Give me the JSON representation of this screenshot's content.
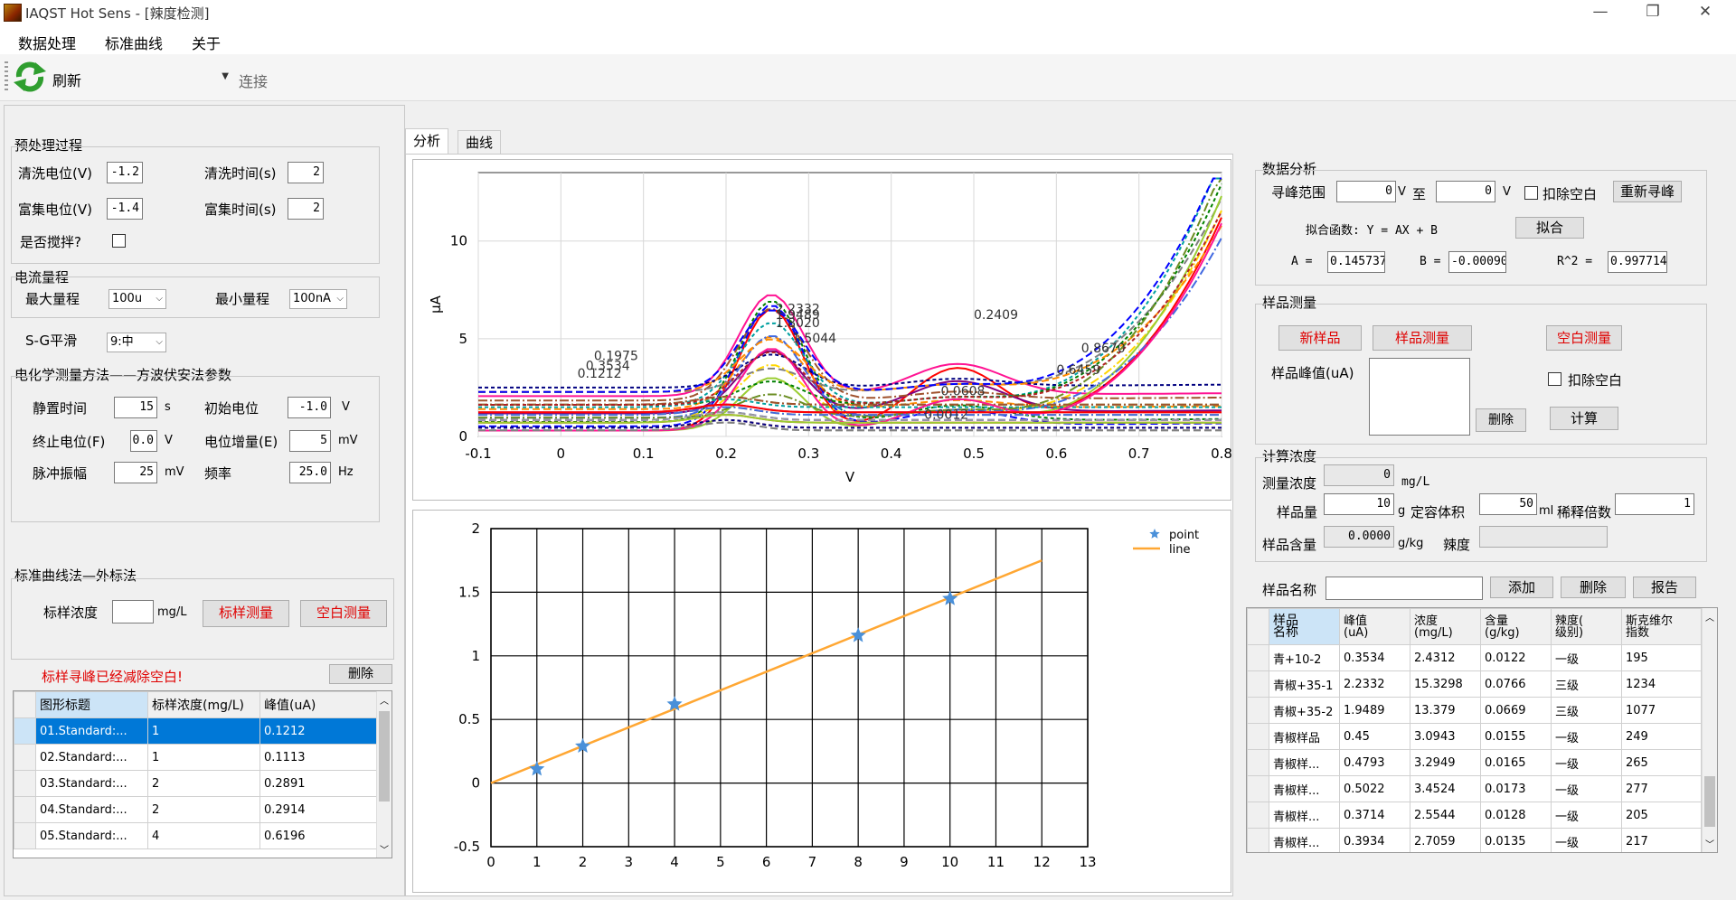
{
  "window": {
    "title": "IAQST Hot Sens - [辣度检测]",
    "min": "—",
    "max": "❐",
    "close": "✕"
  },
  "menu": [
    "数据处理",
    "标准曲线",
    "关于"
  ],
  "toolbar": {
    "refresh": "刷新",
    "port_value": "",
    "connect": "连接"
  },
  "pre": {
    "title": "预处理过程",
    "clean_pot_label": "清洗电位(V)",
    "clean_pot": "-1.2",
    "clean_time_label": "清洗时间(s)",
    "clean_time": "2",
    "enrich_pot_label": "富集电位(V)",
    "enrich_pot": "-1.4",
    "enrich_time_label": "富集时间(s)",
    "enrich_time": "2",
    "stir_label": "是否搅拌?"
  },
  "current": {
    "title": "电流量程",
    "max_label": "最大量程",
    "max_value": "100u",
    "min_label": "最小量程",
    "min_value": "100nA",
    "sg_label": "S-G平滑",
    "sg_value": "9:中"
  },
  "swv": {
    "title": "电化学测量方法——方波伏安法参数",
    "rest_label": "静置时间",
    "rest": "15",
    "rest_unit": "s",
    "init_label": "初始电位",
    "init": "-1.0",
    "init_unit": "V",
    "end_label": "终止电位(F)",
    "end": "0.0",
    "end_unit": "V",
    "inc_label": "电位增量(E)",
    "inc": "5",
    "inc_unit": "mV",
    "amp_label": "脉冲振幅",
    "amp": "25",
    "amp_unit": "mV",
    "freq_label": "频率",
    "freq": "25.0",
    "freq_unit": "Hz"
  },
  "stdcurve": {
    "title": "标准曲线法—外标法",
    "conc_label": "标样浓度",
    "conc": "",
    "conc_unit": "mg/L",
    "measure_btn": "标样测量",
    "blank_btn": "空白测量",
    "status": "标样寻峰已经减除空白!",
    "delete_btn": "删除",
    "headers": [
      "图形标题",
      "标样浓度(mg/L)",
      "峰值(uA)"
    ],
    "rows": [
      [
        "01.Standard:...",
        "1",
        "0.1212"
      ],
      [
        "02.Standard:...",
        "1",
        "0.1113"
      ],
      [
        "03.Standard:...",
        "2",
        "0.2891"
      ],
      [
        "04.Standard:...",
        "2",
        "0.2914"
      ],
      [
        "05.Standard:...",
        "4",
        "0.6196"
      ]
    ]
  },
  "tabs": [
    "分析",
    "曲线"
  ],
  "voltammogram": {
    "xlabel": "V",
    "ylabel": "µA",
    "xticks": [
      "-0.1",
      "0",
      "0.1",
      "0.2",
      "0.3",
      "0.4",
      "0.5",
      "0.6",
      "0.7",
      "0.8"
    ],
    "yticks": [
      "0",
      "5",
      "10"
    ],
    "annotations": [
      "2.2332",
      "1.9489",
      "1.8020",
      "1.5044",
      "0.3534",
      "0.2409",
      "0.1975",
      "0.1212",
      "0.8670",
      "0.6459",
      "0.0608",
      "0.0012"
    ]
  },
  "chart_data": {
    "type": "scatter",
    "title": "",
    "xlabel": "",
    "ylabel": "",
    "xlim": [
      0,
      13
    ],
    "ylim": [
      -0.5,
      2
    ],
    "xticks": [
      "0",
      "1",
      "2",
      "3",
      "4",
      "5",
      "6",
      "7",
      "8",
      "9",
      "10",
      "11",
      "12",
      "13"
    ],
    "yticks": [
      "-0.5",
      "0",
      "0.5",
      "1",
      "1.5",
      "2"
    ],
    "series": [
      {
        "name": "point",
        "x": [
          1,
          2,
          4,
          8,
          10
        ],
        "y": [
          0.11,
          0.29,
          0.62,
          1.16,
          1.45
        ],
        "color": "#4a90d9"
      },
      {
        "name": "line",
        "x": [
          0,
          12
        ],
        "y": [
          0,
          1.75
        ],
        "color": "#ffa733"
      }
    ],
    "legend": "top-right",
    "grid": true
  },
  "analysis": {
    "title": "数据分析",
    "range_label": "寻峰范围",
    "from": "0",
    "v1": "V",
    "to": "至",
    "to_val": "0",
    "v2": "V",
    "subtract": "扣除空白",
    "refind": "重新寻峰",
    "fit_label": "拟合函数: Y = AX + B",
    "fit_btn": "拟合",
    "a_label": "A =",
    "a": "0.145737",
    "b_label": "B =",
    "b": "-0.00090",
    "r_label": "R^2 =",
    "r": "0.997714"
  },
  "sample": {
    "title": "样品测量",
    "new_btn": "新样品",
    "measure_btn": "样品测量",
    "blank_btn": "空白测量",
    "peak_label": "样品峰值(uA)",
    "subtract": "扣除空白",
    "delete_btn": "删除",
    "calc_btn": "计算"
  },
  "conc": {
    "title": "计算浓度",
    "measured_label": "测量浓度",
    "measured": "0",
    "measured_unit": "mg/L",
    "mass_label": "样品量",
    "mass": "10",
    "mass_unit": "g",
    "volume_label": "定容体积",
    "volume": "50",
    "volume_unit": "ml",
    "dilution_label": "稀释倍数",
    "dilution": "1",
    "content_label": "样品含量",
    "content": "0.0000",
    "content_unit": "g/kg",
    "spicy_label": "辣度",
    "spicy": ""
  },
  "results": {
    "name_label": "样品名称",
    "name": "",
    "add_btn": "添加",
    "delete_btn": "删除",
    "report_btn": "报告",
    "headers": [
      "样品\n名称",
      "峰值\n(uA)",
      "浓度\n(mg/L)",
      "含量\n(g/kg)",
      "辣度(\n级别)",
      "斯克维尔\n指数"
    ],
    "rows": [
      [
        "青+10-2",
        "0.3534",
        "2.4312",
        "0.0122",
        "一级",
        "195"
      ],
      [
        "青椒+35-1",
        "2.2332",
        "15.3298",
        "0.0766",
        "三级",
        "1234"
      ],
      [
        "青椒+35-2",
        "1.9489",
        "13.379",
        "0.0669",
        "三级",
        "1077"
      ],
      [
        "青椒样品",
        "0.45",
        "3.0943",
        "0.0155",
        "一级",
        "249"
      ],
      [
        "青椒样...",
        "0.4793",
        "3.2949",
        "0.0165",
        "一级",
        "265"
      ],
      [
        "青椒样...",
        "0.5022",
        "3.4524",
        "0.0173",
        "一级",
        "277"
      ],
      [
        "青椒样...",
        "0.3714",
        "2.5544",
        "0.0128",
        "一级",
        "205"
      ],
      [
        "青椒样...",
        "0.3934",
        "2.7059",
        "0.0135",
        "一级",
        "217"
      ]
    ]
  }
}
